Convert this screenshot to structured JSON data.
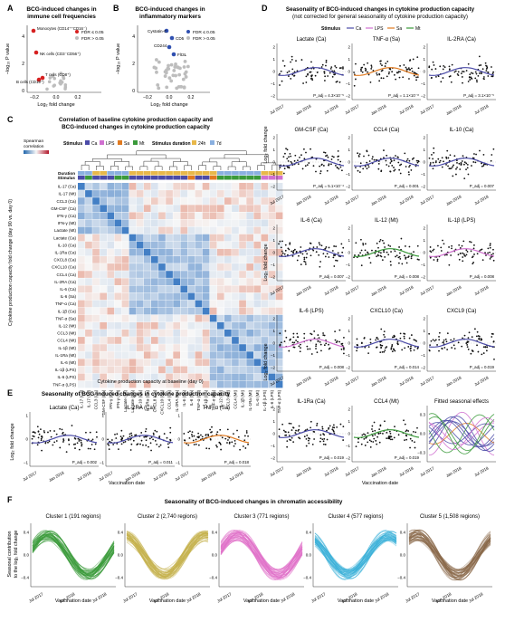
{
  "panels": {
    "A": {
      "letter": "A",
      "title": [
        "BCG-induced changes in",
        "immune cell frequencies"
      ],
      "ylabel": "−log₁₀ P value",
      "xlabel": "Log₂ fold change",
      "yticks": [
        "4",
        "2",
        "0"
      ],
      "xticks": [
        "−0.2",
        "0.0",
        "0.2"
      ],
      "legend": [
        "FDR ≤ 0.05",
        "FDR > 0.05"
      ],
      "labels": [
        "Monocytes (CD14⁺⁺CD16⁻)",
        "NK cells (CD3⁻CD56⁺)",
        "T cells (CD8⁺)",
        "B cells (CD19⁺)"
      ]
    },
    "B": {
      "letter": "B",
      "title": [
        "BCG-induced changes in",
        "inflammatory markers"
      ],
      "ylabel": "−log₁₀ P value",
      "xlabel": "Log₂ fold change",
      "yticks": [
        "4",
        "2",
        "0"
      ],
      "xticks": [
        "−0.2",
        "0.0",
        "0.2"
      ],
      "legend": [
        "FDR ≤ 0.05",
        "FDR > 0.05"
      ],
      "labels": [
        "Cystatin-C",
        "CD5",
        "CD244",
        "Flt3L"
      ]
    },
    "C": {
      "letter": "C",
      "title": [
        "Correlation of baseline cytokine production capacity and",
        "BCG-induced changes in cytokine production capacity"
      ],
      "legend_stimulus_label": "Stimulus",
      "legend_stimulus": [
        "Ca",
        "LPS",
        "Sa",
        "Mt"
      ],
      "legend_duration_label": "Stimulus duration",
      "legend_duration": [
        "24h",
        "7d"
      ],
      "spearman_label": [
        "Spearman",
        "correlation"
      ],
      "row_annot": [
        "Duration",
        "Stimulus"
      ],
      "ylabel": [
        "Cytokine production capacity fold change (day 90 vs. day 0)"
      ],
      "xlabel": "Cytokine production capacity at baseline (day 0)",
      "row_labels": [
        "IL-17 (Ca)",
        "IL-17 (Mt)",
        "CCL3 (Ca)",
        "GM-CSF (Ca)",
        "IFN-γ (Ca)",
        "IFN-γ (Mt)",
        "Lactate (Mt)",
        "Lactate (Ca)",
        "IL-10 (Ca)",
        "IL-1Ra (Ca)",
        "CXCL8 (Ca)",
        "CXCL10 (Ca)",
        "CCL4 (Ca)",
        "IL-2RA (Ca)",
        "IL-6 (Ca)",
        "IL-6 (Sa)",
        "TNF-α (Ca)",
        "IL-1β (Ca)",
        "TNF-α (Sa)",
        "IL-12 (Mt)",
        "CCL3 (Mt)",
        "CCL4 (Mt)",
        "IL-1β (Mt)",
        "IL-1Ra (Mt)",
        "IL-6 (Mt)",
        "IL-1β (LPS)",
        "IL-6 (LPS)",
        "TNF-α (LPS)"
      ]
    },
    "D": {
      "letter": "D",
      "title": [
        "Seasonality of BCG-induced changes in cytokine production capacity",
        "(not corrected for general seasonality of cytokine production capacity)"
      ],
      "legend_label": "Stimulus",
      "legend": [
        "Ca",
        "LPS",
        "Sa",
        "Mt"
      ],
      "ylabel": "Log₂ fold change",
      "xlabel": "Vaccination date",
      "xticks": [
        "Jul 2017",
        "Jan 2018",
        "Jul 2018"
      ],
      "yticks": [
        "2",
        "1",
        "0",
        "−1",
        "−2"
      ],
      "subplots": [
        {
          "title": "Lactate (Ca)",
          "pval": "P_adj = 4.3×10⁻⁵"
        },
        {
          "title": "TNF-α (Sa)",
          "pval": "P_adj = 1.1×10⁻⁸"
        },
        {
          "title": "IL-2RA (Ca)",
          "pval": "P_adj = 3.1×10⁻⁵"
        },
        {
          "title": "GM-CSF (Ca)",
          "pval": "P_adj = 5.1×10⁻⁴"
        },
        {
          "title": "CCL4 (Ca)",
          "pval": "P_adj = 0.001"
        },
        {
          "title": "IL-10 (Ca)",
          "pval": "P_adj = 0.007"
        },
        {
          "title": "IL-6 (Ca)",
          "pval": "P_adj = 0.007"
        },
        {
          "title": "IL-12 (Mt)",
          "pval": "P_adj = 0.008"
        },
        {
          "title": "IL-1β (LPS)",
          "pval": "P_adj = 0.008"
        },
        {
          "title": "IL-6 (LPS)",
          "pval": "P_adj = 0.008"
        },
        {
          "title": "CXCL10 (Ca)",
          "pval": "P_adj = 0.014"
        },
        {
          "title": "CXCL9 (Ca)",
          "pval": "P_adj = 0.019"
        },
        {
          "title": "IL-1Ra (Ca)",
          "pval": "P_adj = 0.019"
        },
        {
          "title": "CCL4 (Mt)",
          "pval": "P_adj = 0.019"
        }
      ],
      "fitted_title": "Fitted seasonal effects",
      "fitted_yticks": [
        "0.3",
        "0.0",
        "−0.3"
      ]
    },
    "E": {
      "letter": "E",
      "title": "Seasonality of BCG-induced changes in cytokine production capacity",
      "ylabel": "Log₂ fold change",
      "xlabel": "Vaccination date",
      "xticks": [
        "Jul 2017",
        "Jan 2018",
        "Jul 2018"
      ],
      "yticks": [
        "1",
        "0",
        "−1"
      ],
      "subplots": [
        {
          "title": "Lactate (Ca)",
          "pval": "P_adj = 0.002"
        },
        {
          "title": "IL-2RA (Ca)",
          "pval": "P_adj = 0.011"
        },
        {
          "title": "TNF-α (Sa)",
          "pval": "P_adj = 0.018"
        }
      ]
    },
    "F": {
      "letter": "F",
      "title": "Seasonality of BCG-induced changes in chromatin accessibility",
      "ylabel": [
        "Seasonal contribution",
        "to the log₂ fold change"
      ],
      "xlabel": "Vaccination date",
      "xticks": [
        "Jul 2017",
        "Jan 2018",
        "Jul 2018"
      ],
      "yticks": [
        "0.4",
        "0.0",
        "−0.4"
      ],
      "clusters": [
        {
          "title": "Cluster 1 (191 regions)",
          "color": "#3a9a3a"
        },
        {
          "title": "Cluster 2 (2,740 regions)",
          "color": "#c4b04a"
        },
        {
          "title": "Cluster 3 (771 regions)",
          "color": "#e070c8"
        },
        {
          "title": "Cluster 4 (577 regions)",
          "color": "#3ab0d8"
        },
        {
          "title": "Cluster 5 (1,508 regions)",
          "color": "#8a6a4a"
        }
      ]
    }
  },
  "colors": {
    "sig": "#d62020",
    "nonsig": "#bdbdbd",
    "sigB": "#3050b0",
    "Ca": "#4b4ba8",
    "LPS": "#d070d0",
    "Sa": "#e07a20",
    "Mt": "#3a9a3a",
    "d24h": "#e8b84a",
    "d7d": "#8ab0e0"
  }
}
